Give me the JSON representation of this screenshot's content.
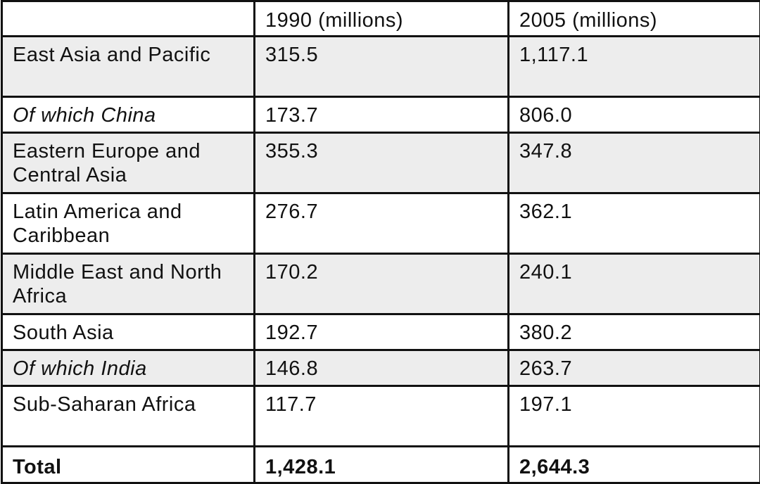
{
  "table": {
    "headers": [
      "",
      "1990 (millions)",
      "2005 (millions)"
    ],
    "rows": [
      {
        "region": "East Asia and Pacific",
        "v1990": "315.5",
        "v2005": "1,117.1",
        "style": "shaded",
        "italic": false
      },
      {
        "region": "Of which China",
        "v1990": "173.7",
        "v2005": "806.0",
        "style": "plain",
        "italic": true
      },
      {
        "region": "Eastern Europe and Central Asia",
        "v1990": "355.3",
        "v2005": "347.8",
        "style": "shaded",
        "italic": false
      },
      {
        "region": "Latin America and Caribbean",
        "v1990": "276.7",
        "v2005": "362.1",
        "style": "plain",
        "italic": false
      },
      {
        "region": "Middle East and North Africa",
        "v1990": "170.2",
        "v2005": "240.1",
        "style": "shaded",
        "italic": false
      },
      {
        "region": "South Asia",
        "v1990": "192.7",
        "v2005": "380.2",
        "style": "plain",
        "italic": false
      },
      {
        "region": "Of which India",
        "v1990": "146.8",
        "v2005": "263.7",
        "style": "shaded",
        "italic": true
      },
      {
        "region": "Sub-Saharan Africa",
        "v1990": "117.7",
        "v2005": "197.1",
        "style": "plain",
        "italic": false
      }
    ],
    "total": {
      "label": "Total",
      "v1990": "1,428.1",
      "v2005": "2,644.3"
    }
  },
  "colors": {
    "border": "#111111",
    "shaded_row": "#ededed",
    "plain_row": "#ffffff"
  }
}
